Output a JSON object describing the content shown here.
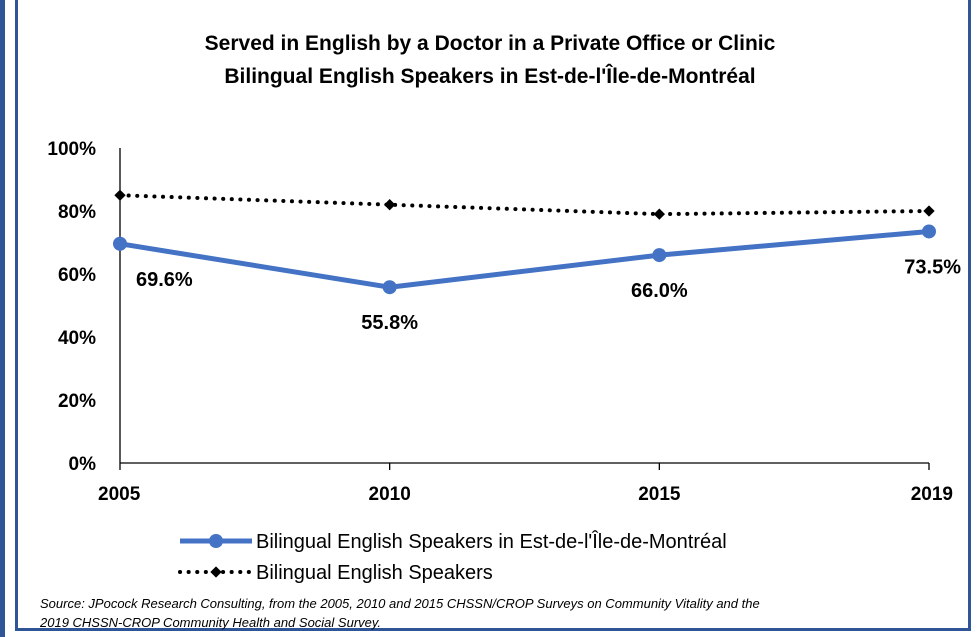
{
  "chart_data": {
    "type": "line",
    "title": "Served in English by a Doctor in a Private Office or Clinic",
    "subtitle": "Bilingual English Speakers in Est-de-l'Île-de-Montréal",
    "categories": [
      "2005",
      "2010",
      "2015",
      "2019"
    ],
    "ylim": [
      0,
      100
    ],
    "y_ticks": [
      "0%",
      "20%",
      "40%",
      "60%",
      "80%",
      "100%"
    ],
    "grid": false,
    "legend_position": "bottom",
    "series": [
      {
        "name": "Bilingual English Speakers in Est-de-l'Île-de-Montréal",
        "values": [
          69.6,
          55.8,
          66.0,
          73.5
        ],
        "labels": [
          "69.6%",
          "55.8%",
          "66.0%",
          "73.5%"
        ],
        "color": "#4472c4",
        "style": "solid-circle"
      },
      {
        "name": "Bilingual English Speakers",
        "values": [
          85,
          82,
          79,
          80
        ],
        "color": "#000000",
        "style": "dotted-diamond"
      }
    ]
  },
  "source": {
    "line1": "Source: JPocock Research Consulting, from the 2005, 2010  and 2015  CHSSN/CROP Surveys on Community Vitality and the",
    "line2": "2019  CHSSN-CROP Community Health and Social Survey."
  }
}
